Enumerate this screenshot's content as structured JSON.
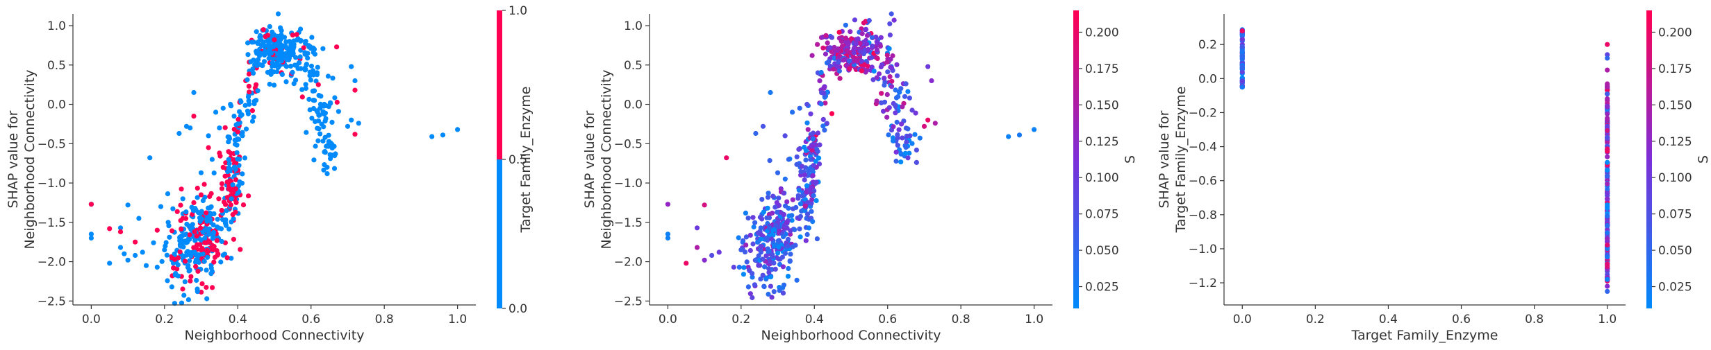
{
  "colors": {
    "low": "#008afb",
    "mid": "#7c2fd8",
    "high": "#ff0052",
    "axis": "#333333"
  },
  "chart_data": [
    {
      "type": "scatter",
      "title": "",
      "xlabel": "Neighborhood Connectivity",
      "ylabel_lines": [
        "SHAP value for",
        "Neighborhood Connectivity"
      ],
      "xlim": [
        -0.05,
        1.05
      ],
      "ylim": [
        -2.55,
        1.15
      ],
      "xticks": [
        0.0,
        0.2,
        0.4,
        0.6,
        0.8,
        1.0
      ],
      "xtick_labels": [
        "0.0",
        "0.2",
        "0.4",
        "0.6",
        "0.8",
        "1.0"
      ],
      "yticks": [
        -2.5,
        -2.0,
        -1.5,
        -1.0,
        -0.5,
        0.0,
        0.5,
        1.0
      ],
      "ytick_labels": [
        "−2.5",
        "−2.0",
        "−1.5",
        "−1.0",
        "−0.5",
        "0.0",
        "0.5",
        "1.0"
      ],
      "colorbar": {
        "label": "Target Family_Enzyme",
        "range": [
          0.0,
          1.0
        ],
        "binary": true,
        "ticks": [
          0.0,
          0.5,
          1.0
        ],
        "tick_labels": [
          "0.0",
          "0.5",
          "1.0"
        ]
      },
      "points": [
        [
          0.0,
          -1.27,
          0
        ],
        [
          0.0,
          -1.65,
          0
        ],
        [
          0.0,
          -1.7,
          0
        ],
        [
          0.05,
          -2.02,
          0
        ],
        [
          0.08,
          -1.57,
          0
        ],
        [
          0.08,
          -1.82,
          0
        ],
        [
          0.09,
          -1.9,
          0
        ],
        [
          0.1,
          -1.28,
          0
        ],
        [
          0.1,
          -1.98,
          0
        ],
        [
          0.12,
          -1.92,
          0
        ],
        [
          0.13,
          -1.45,
          0
        ],
        [
          0.14,
          -1.88,
          0
        ],
        [
          0.15,
          -2.05,
          0
        ],
        [
          0.16,
          -0.68,
          0
        ],
        [
          0.17,
          -1.76,
          0
        ],
        [
          0.18,
          -2.07,
          0
        ],
        [
          0.19,
          -1.3,
          0
        ],
        [
          0.2,
          -1.85,
          0
        ],
        [
          0.21,
          -1.5,
          0
        ],
        [
          0.22,
          -2.32,
          0
        ],
        [
          0.23,
          -2.15,
          0
        ],
        [
          0.24,
          -0.37,
          0
        ],
        [
          0.25,
          -1.2,
          0
        ],
        [
          0.26,
          -0.28,
          0
        ],
        [
          0.27,
          -0.3,
          0
        ],
        [
          0.28,
          0.15,
          0
        ],
        [
          0.29,
          -2.38,
          0
        ],
        [
          0.3,
          -0.87,
          0
        ],
        [
          0.31,
          -1.18,
          0
        ],
        [
          0.32,
          -0.4,
          0
        ],
        [
          0.33,
          -0.7,
          0
        ],
        [
          0.34,
          -0.1,
          0
        ],
        [
          0.35,
          -0.3,
          0
        ],
        [
          0.36,
          -0.05,
          0
        ],
        [
          0.38,
          0.0,
          0
        ],
        [
          0.39,
          -0.15,
          0
        ],
        [
          0.4,
          -0.25,
          0
        ],
        [
          0.93,
          -0.41,
          0
        ],
        [
          0.96,
          -0.39,
          0
        ],
        [
          1.0,
          -0.32,
          0
        ],
        [
          0.7,
          -0.28,
          0
        ],
        [
          0.71,
          -0.2,
          0
        ],
        [
          0.73,
          -0.24,
          0
        ],
        [
          0.71,
          0.48,
          0
        ],
        [
          0.72,
          0.3,
          0
        ],
        [
          0.05,
          -1.58,
          1
        ],
        [
          0.08,
          -1.62,
          1
        ],
        [
          0.12,
          -1.75,
          1
        ],
        [
          0.18,
          -1.6,
          1
        ],
        [
          0.22,
          -1.95,
          1
        ],
        [
          0.25,
          -1.45,
          1
        ],
        [
          0.28,
          -0.15,
          1
        ],
        [
          0.28,
          -1.25,
          1
        ],
        [
          0.3,
          -1.15,
          1
        ],
        [
          0.32,
          -0.55,
          1
        ],
        [
          0.35,
          -0.62,
          1
        ],
        [
          0.36,
          -0.8,
          1
        ],
        [
          0.4,
          -0.35,
          1
        ],
        [
          0.44,
          -0.08,
          1
        ],
        [
          0.45,
          0.25,
          1
        ],
        [
          0.47,
          0.95,
          1
        ],
        [
          0.5,
          0.82,
          1
        ],
        [
          0.55,
          0.88,
          1
        ],
        [
          0.58,
          0.72,
          1
        ],
        [
          0.62,
          0.25,
          1
        ],
        [
          0.67,
          0.73,
          1
        ],
        [
          0.72,
          0.18,
          1
        ],
        [
          0.72,
          -0.38,
          1
        ],
        [
          0.0,
          -1.27,
          1
        ]
      ],
      "clusters": [
        {
          "cx": 0.255,
          "cy": -1.85,
          "sx": 0.03,
          "sy": 0.28,
          "n": 110,
          "pHigh": 0.25
        },
        {
          "cx": 0.31,
          "cy": -1.65,
          "sx": 0.025,
          "sy": 0.28,
          "n": 160,
          "pHigh": 0.4
        },
        {
          "cx": 0.38,
          "cy": -1.05,
          "sx": 0.015,
          "sy": 0.3,
          "n": 95,
          "pHigh": 0.55
        },
        {
          "cx": 0.4,
          "cy": -0.55,
          "sx": 0.012,
          "sy": 0.25,
          "n": 35,
          "pHigh": 0.2
        },
        {
          "cx": 0.43,
          "cy": 0.15,
          "sx": 0.012,
          "sy": 0.2,
          "n": 25,
          "pHigh": 0.25
        },
        {
          "cx": 0.5,
          "cy": 0.68,
          "sx": 0.04,
          "sy": 0.15,
          "n": 230,
          "pHigh": 0.12
        },
        {
          "cx": 0.59,
          "cy": 0.45,
          "sx": 0.02,
          "sy": 0.25,
          "n": 40,
          "pHigh": 0.05
        },
        {
          "cx": 0.63,
          "cy": -0.1,
          "sx": 0.02,
          "sy": 0.25,
          "n": 45,
          "pHigh": 0.03
        },
        {
          "cx": 0.65,
          "cy": -0.55,
          "sx": 0.01,
          "sy": 0.15,
          "n": 25,
          "pHigh": 0.02
        }
      ]
    },
    {
      "type": "scatter",
      "title": "",
      "xlabel": "Neighborhood Connectivity",
      "ylabel_lines": [
        "SHAP value for",
        "Neighborhood Connectivity"
      ],
      "xlim": [
        -0.05,
        1.05
      ],
      "ylim": [
        -2.55,
        1.15
      ],
      "xticks": [
        0.0,
        0.2,
        0.4,
        0.6,
        0.8,
        1.0
      ],
      "xtick_labels": [
        "0.0",
        "0.2",
        "0.4",
        "0.6",
        "0.8",
        "1.0"
      ],
      "yticks": [
        -2.5,
        -2.0,
        -1.5,
        -1.0,
        -0.5,
        0.0,
        0.5,
        1.0
      ],
      "ytick_labels": [
        "−2.5",
        "−2.0",
        "−1.5",
        "−1.0",
        "−0.5",
        "0.0",
        "0.5",
        "1.0"
      ],
      "colorbar": {
        "label": "S",
        "range": [
          0.01,
          0.215
        ],
        "binary": false,
        "ticks": [
          0.025,
          0.05,
          0.075,
          0.1,
          0.125,
          0.15,
          0.175,
          0.2
        ],
        "tick_labels": [
          "0.025",
          "0.050",
          "0.075",
          "0.100",
          "0.125",
          "0.150",
          "0.175",
          "0.200"
        ]
      },
      "points": [
        [
          0.0,
          -1.27,
          0.13
        ],
        [
          0.0,
          -1.65,
          0.02
        ],
        [
          0.0,
          -1.7,
          0.02
        ],
        [
          0.05,
          -2.02,
          0.2
        ],
        [
          0.08,
          -1.57,
          0.1
        ],
        [
          0.08,
          -1.82,
          0.15
        ],
        [
          0.1,
          -1.98,
          0.12
        ],
        [
          0.1,
          -1.28,
          0.18
        ],
        [
          0.12,
          -1.92,
          0.08
        ],
        [
          0.14,
          -1.88,
          0.1
        ],
        [
          0.16,
          -0.68,
          0.2
        ],
        [
          0.18,
          -2.07,
          0.09
        ],
        [
          0.2,
          -1.85,
          0.06
        ],
        [
          0.22,
          -2.32,
          0.05
        ],
        [
          0.23,
          -2.15,
          0.07
        ],
        [
          0.24,
          -0.37,
          0.05
        ],
        [
          0.26,
          -0.28,
          0.07
        ],
        [
          0.28,
          0.15,
          0.03
        ],
        [
          0.29,
          -2.38,
          0.06
        ],
        [
          0.3,
          -0.87,
          0.05
        ],
        [
          0.32,
          -0.4,
          0.08
        ],
        [
          0.33,
          -0.7,
          0.05
        ],
        [
          0.34,
          -0.1,
          0.04
        ],
        [
          0.36,
          -0.05,
          0.05
        ],
        [
          0.38,
          0.0,
          0.08
        ],
        [
          0.93,
          -0.41,
          0.02
        ],
        [
          0.96,
          -0.39,
          0.03
        ],
        [
          1.0,
          -0.32,
          0.02
        ],
        [
          0.7,
          -0.28,
          0.18
        ],
        [
          0.71,
          -0.2,
          0.2
        ],
        [
          0.73,
          -0.24,
          0.15
        ],
        [
          0.71,
          0.48,
          0.1
        ],
        [
          0.72,
          0.3,
          0.12
        ]
      ],
      "clusters": [
        {
          "cx": 0.255,
          "cy": -1.85,
          "sx": 0.03,
          "sy": 0.28,
          "n": 110,
          "sMean": 0.07,
          "sSd": 0.04
        },
        {
          "cx": 0.31,
          "cy": -1.65,
          "sx": 0.025,
          "sy": 0.28,
          "n": 160,
          "sMean": 0.06,
          "sSd": 0.04
        },
        {
          "cx": 0.38,
          "cy": -1.05,
          "sx": 0.015,
          "sy": 0.3,
          "n": 95,
          "sMean": 0.06,
          "sSd": 0.04
        },
        {
          "cx": 0.4,
          "cy": -0.55,
          "sx": 0.012,
          "sy": 0.25,
          "n": 35,
          "sMean": 0.09,
          "sSd": 0.05
        },
        {
          "cx": 0.43,
          "cy": 0.15,
          "sx": 0.012,
          "sy": 0.2,
          "n": 25,
          "sMean": 0.08,
          "sSd": 0.05
        },
        {
          "cx": 0.5,
          "cy": 0.68,
          "sx": 0.04,
          "sy": 0.15,
          "n": 230,
          "sMean": 0.13,
          "sSd": 0.05
        },
        {
          "cx": 0.59,
          "cy": 0.45,
          "sx": 0.02,
          "sy": 0.25,
          "n": 40,
          "sMean": 0.1,
          "sSd": 0.05
        },
        {
          "cx": 0.63,
          "cy": -0.1,
          "sx": 0.02,
          "sy": 0.25,
          "n": 45,
          "sMean": 0.07,
          "sSd": 0.04
        },
        {
          "cx": 0.65,
          "cy": -0.55,
          "sx": 0.01,
          "sy": 0.15,
          "n": 25,
          "sMean": 0.05,
          "sSd": 0.03
        }
      ]
    },
    {
      "type": "scatter",
      "title": "",
      "xlabel": "Target Family_Enzyme",
      "ylabel_lines": [
        "SHAP value for",
        "Target Family_Enzyme"
      ],
      "xlim": [
        -0.05,
        1.05
      ],
      "ylim": [
        -1.33,
        0.38
      ],
      "xticks": [
        0.0,
        0.2,
        0.4,
        0.6,
        0.8,
        1.0
      ],
      "xtick_labels": [
        "0.0",
        "0.2",
        "0.4",
        "0.6",
        "0.8",
        "1.0"
      ],
      "yticks": [
        -1.2,
        -1.0,
        -0.8,
        -0.6,
        -0.4,
        -0.2,
        0.0,
        0.2
      ],
      "ytick_labels": [
        "−1.2",
        "−1.0",
        "−0.8",
        "−0.6",
        "−0.4",
        "−0.2",
        "0.0",
        "0.2"
      ],
      "colorbar": {
        "label": "S",
        "range": [
          0.01,
          0.215
        ],
        "binary": false,
        "ticks": [
          0.025,
          0.05,
          0.075,
          0.1,
          0.125,
          0.15,
          0.175,
          0.2
        ],
        "tick_labels": [
          "0.025",
          "0.050",
          "0.075",
          "0.100",
          "0.125",
          "0.150",
          "0.175",
          "0.200"
        ]
      },
      "points": [
        [
          1.0,
          0.2,
          0.2
        ],
        [
          1.0,
          0.14,
          0.09
        ],
        [
          1.0,
          0.12,
          0.05
        ],
        [
          1.0,
          0.05,
          0.15
        ],
        [
          1.0,
          -1.25,
          0.05
        ],
        [
          1.0,
          -1.22,
          0.12
        ],
        [
          1.0,
          -1.18,
          0.02
        ],
        [
          0.0,
          0.28,
          0.2
        ],
        [
          0.0,
          -0.05,
          0.03
        ]
      ],
      "strips": [
        {
          "x": 0.0,
          "ymin": -0.06,
          "ymax": 0.29,
          "n": 70,
          "sMean": 0.05,
          "sSd": 0.05
        },
        {
          "x": 1.0,
          "ymin": -1.2,
          "ymax": -0.03,
          "n": 200,
          "sMean": 0.1,
          "sSd": 0.06
        }
      ]
    }
  ]
}
